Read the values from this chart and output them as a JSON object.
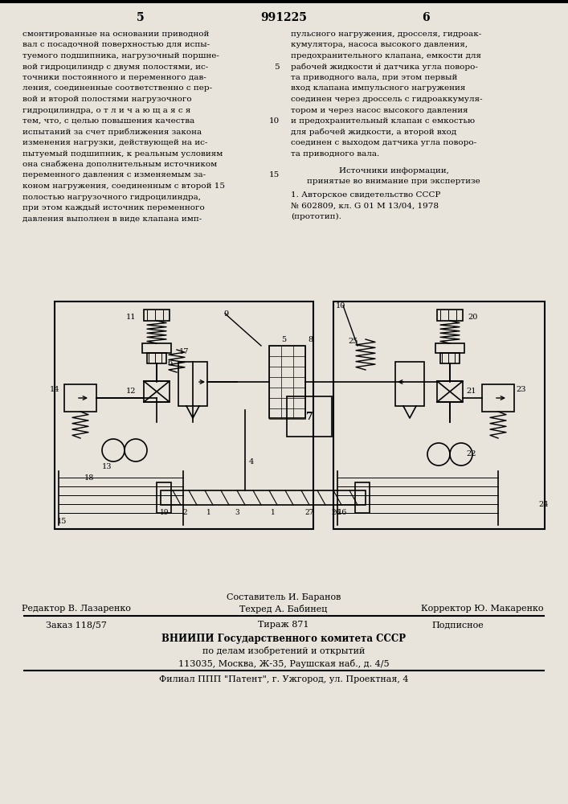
{
  "bg_color": "#e8e4dc",
  "page_number_left": "5",
  "page_number_center": "991225",
  "page_number_right": "6",
  "col_left_lines": [
    "смонтированные на основании приводной",
    "вал с посадочной поверхностью для испы-",
    "туемого подшипника, нагрузочный поршне-",
    "вой гидроцилиндр с двумя полостями, ис-",
    "точники постоянного и переменного дав-",
    "ления, соединенные соответственно с пер-",
    "вой и второй полостями нагрузочного",
    "гидроцилиндра, о т л и ч а ю щ а я с я",
    "тем, что, с целью повышения качества",
    "испытаний за счет приближения закона",
    "изменения нагрузки, действующей на ис-",
    "пытуемый подшипник, к реальным условиям",
    "она снабжена дополнительным источником",
    "переменного давления с изменяемым за-",
    "коном нагружения, соединенным с второй 15",
    "полостью нагрузочного гидроцилиндра,",
    "при этом каждый источник переменного",
    "давления выполнен в виде клапана имп-"
  ],
  "col_right_lines": [
    "пульсного нагружения, дросселя, гидроак-",
    "кумулятора, насоса высокого давления,",
    "предохранительного клапана, емкости для",
    "рабочей жидкости и́ датчика угла поворо-",
    "та приводного вала, при этом первый",
    "вход клапана импульсного нагружения",
    "соединен через дроссель с гидроаккумуля-",
    "тором и через насос высокого давления",
    "и предохранительный клапан с емкостью",
    "для рабочей жидкости, а второй вход",
    "соединен с выходом датчика угла поворо-",
    "та приводного вала."
  ],
  "sources_title": "Источники информации,",
  "sources_subtitle": "принятые во внимание при экспертизе",
  "source_ref": "1. Авторское свидетельство СССР",
  "source_detail": "№ 602809, кл. G 01 M 13/04, 1978",
  "source_proto": "(прототип).",
  "footer_composer": "Составитель И. Баранов",
  "footer_editor": "Редактор В. Лазаренко",
  "footer_tech": "Техред А. Бабинец",
  "footer_corrector": "Корректор Ю. Макаренко",
  "footer_order": "Заказ 118/57",
  "footer_print": "Тираж 871",
  "footer_sub": "Подписное",
  "footer_org": "ВНИИПИ Государственного комитета СССР",
  "footer_dept": "по делам изобретений и открытий",
  "footer_addr": "113035, Москва, Ж-35, Раушская наб., д. 4/5",
  "footer_branch": "Филиал ППП \"Патент\", г. Ужгород, ул. Проектная, 4"
}
